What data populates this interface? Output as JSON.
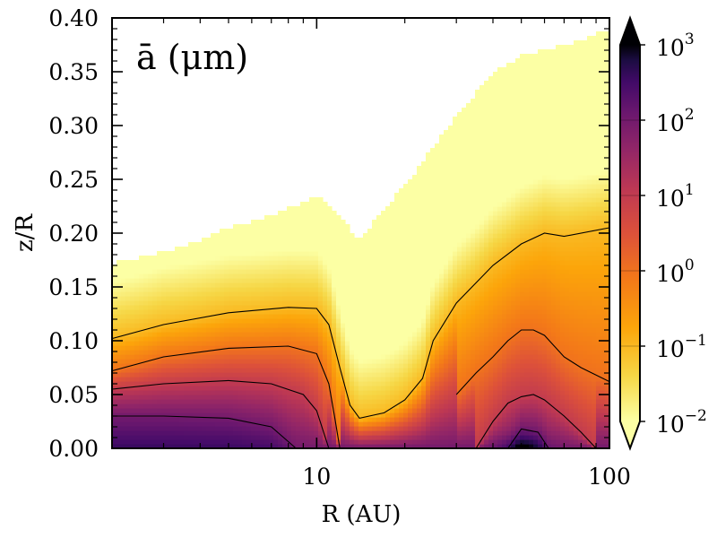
{
  "chart_data": {
    "type": "heatmap",
    "title": "ā (μm)",
    "xlabel": "R (AU)",
    "ylabel": "z/R",
    "xscale": "log",
    "xlim": [
      2,
      100
    ],
    "ylim": [
      0.0,
      0.4
    ],
    "xtick_labels": [
      "10",
      "100"
    ],
    "xtick_values": [
      10,
      100
    ],
    "ytick_labels": [
      "0.00",
      "0.05",
      "0.10",
      "0.15",
      "0.20",
      "0.25",
      "0.30",
      "0.35",
      "0.40"
    ],
    "ytick_values": [
      0.0,
      0.05,
      0.1,
      0.15,
      0.2,
      0.25,
      0.3,
      0.35,
      0.4
    ],
    "colorbar": {
      "label_unit": "μm",
      "scale": "log",
      "range": [
        0.01,
        1000
      ],
      "extend": "both",
      "tick_labels": [
        {
          "base": "10",
          "exp": "−2"
        },
        {
          "base": "10",
          "exp": "−1"
        },
        {
          "base": "10",
          "exp": "0"
        },
        {
          "base": "10",
          "exp": "1"
        },
        {
          "base": "10",
          "exp": "2"
        },
        {
          "base": "10",
          "exp": "3"
        }
      ],
      "tick_values": [
        0.01,
        0.1,
        1,
        10,
        100,
        1000
      ],
      "colormap": "inferno_r"
    },
    "upper_boundary": {
      "R": [
        2,
        5,
        10,
        12,
        14,
        16,
        20,
        25,
        30,
        40,
        50,
        60,
        70,
        80,
        100
      ],
      "zR": [
        0.172,
        0.205,
        0.235,
        0.215,
        0.193,
        0.215,
        0.245,
        0.28,
        0.31,
        0.35,
        0.365,
        0.37,
        0.375,
        0.38,
        0.39
      ]
    },
    "contours": [
      {
        "level": 0.1,
        "segments": [
          {
            "R": [
              2,
              3,
              5,
              8,
              10,
              11,
              12,
              13,
              14,
              17,
              20,
              23,
              25,
              30,
              40,
              50,
              60,
              70,
              100
            ],
            "zR": [
              0.102,
              0.115,
              0.126,
              0.131,
              0.13,
              0.115,
              0.075,
              0.04,
              0.028,
              0.033,
              0.045,
              0.065,
              0.1,
              0.135,
              0.17,
              0.19,
              0.2,
              0.197,
              0.205
            ]
          }
        ]
      },
      {
        "level": 1,
        "segments": [
          {
            "R": [
              2,
              3,
              5,
              8,
              10,
              11,
              11.5,
              12
            ],
            "zR": [
              0.072,
              0.085,
              0.093,
              0.095,
              0.088,
              0.06,
              0.03,
              0.0
            ]
          },
          {
            "R": [
              30,
              35,
              40,
              45,
              50,
              55,
              60,
              70,
              80,
              100
            ],
            "zR": [
              0.05,
              0.07,
              0.085,
              0.1,
              0.11,
              0.11,
              0.105,
              0.085,
              0.075,
              0.062
            ]
          }
        ]
      },
      {
        "level": 10,
        "segments": [
          {
            "R": [
              2,
              3,
              5,
              7,
              9,
              10,
              11
            ],
            "zR": [
              0.055,
              0.06,
              0.063,
              0.06,
              0.05,
              0.035,
              0.0
            ]
          },
          {
            "R": [
              35,
              40,
              45,
              50,
              55,
              60,
              70,
              80,
              90
            ],
            "zR": [
              0.0,
              0.025,
              0.042,
              0.048,
              0.05,
              0.045,
              0.03,
              0.015,
              0.0
            ]
          }
        ]
      },
      {
        "level": 100,
        "segments": [
          {
            "R": [
              2,
              3,
              5,
              7,
              8.5
            ],
            "zR": [
              0.03,
              0.03,
              0.028,
              0.02,
              0.0
            ]
          },
          {
            "R": [
              45,
              50,
              57,
              62
            ],
            "zR": [
              0.0,
              0.018,
              0.015,
              0.0
            ]
          }
        ]
      }
    ],
    "color_stops": [
      {
        "t": 0.0,
        "color": "#fcffa4"
      },
      {
        "t": 0.12,
        "color": "#f6d746"
      },
      {
        "t": 0.25,
        "color": "#fca50a"
      },
      {
        "t": 0.38,
        "color": "#f37819"
      },
      {
        "t": 0.5,
        "color": "#dd513a"
      },
      {
        "t": 0.62,
        "color": "#bc3754"
      },
      {
        "t": 0.72,
        "color": "#932667"
      },
      {
        "t": 0.82,
        "color": "#6a176e"
      },
      {
        "t": 0.9,
        "color": "#420a68"
      },
      {
        "t": 0.96,
        "color": "#1b0c41"
      },
      {
        "t": 1.0,
        "color": "#000004"
      }
    ]
  }
}
